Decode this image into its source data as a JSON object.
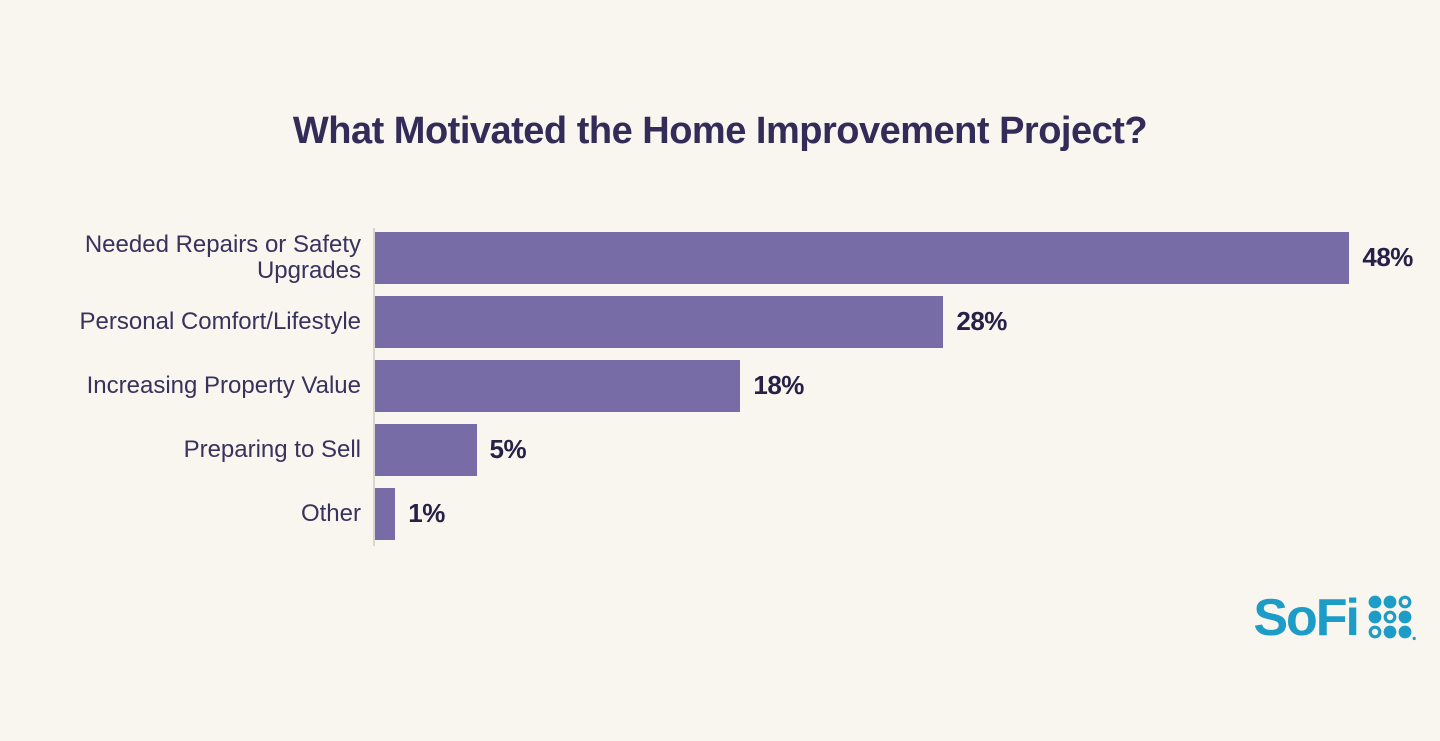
{
  "chart_data": {
    "type": "bar",
    "orientation": "horizontal",
    "title": "What Motivated the Home Improvement Project?",
    "categories": [
      "Needed Repairs or Safety Upgrades",
      "Personal Comfort/Lifestyle",
      "Increasing Property Value",
      "Preparing to Sell",
      "Other"
    ],
    "values": [
      48,
      28,
      18,
      5,
      1
    ],
    "value_labels": [
      "48%",
      "28%",
      "18%",
      "5%",
      "1%"
    ],
    "xlabel": "",
    "ylabel": "",
    "xlim": [
      0,
      50
    ],
    "grid": false,
    "legend": false,
    "bar_color": "#776ca6",
    "background_color": "#f8f6ef"
  },
  "chart": {
    "title": "What Motivated the Home Improvement Project?",
    "rows": [
      {
        "label": "Needed Repairs or Safety Upgrades",
        "value": 48,
        "value_label": "48%"
      },
      {
        "label": "Personal Comfort/Lifestyle",
        "value": 28,
        "value_label": "28%"
      },
      {
        "label": "Increasing Property Value",
        "value": 18,
        "value_label": "18%"
      },
      {
        "label": "Preparing to Sell",
        "value": 5,
        "value_label": "5%"
      },
      {
        "label": "Other",
        "value": 1,
        "value_label": "1%"
      }
    ]
  },
  "branding": {
    "logo_text": "SoFi",
    "logo_color": "#1d9cc7"
  },
  "colors": {
    "background": "#f8f6ef",
    "bar": "#776ca6",
    "title_text": "#332b58",
    "label_text": "#38325c",
    "value_text": "#272047",
    "axis_line": "#d9d5ce"
  }
}
